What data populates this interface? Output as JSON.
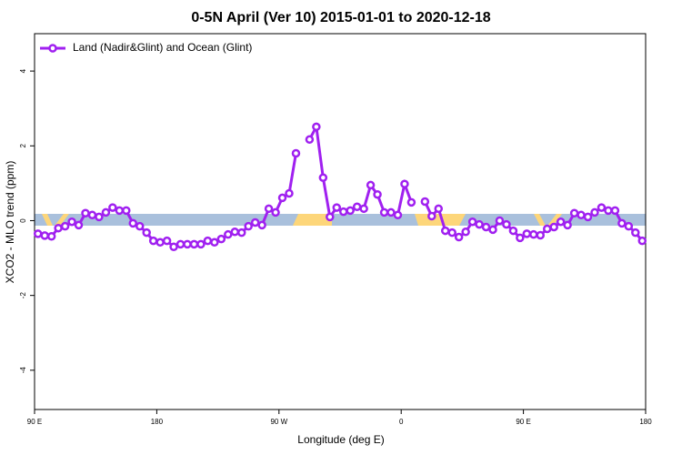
{
  "chart_data": {
    "type": "line",
    "title": "0-5N April (Ver 10)   2015-01-01 to 2020-12-18",
    "x_label": "Longitude (deg E)",
    "y_label": "XCO2 - MLO trend (ppm)",
    "legend": "top-left",
    "x": [
      92.5,
      97.5,
      102.5,
      107.5,
      112.5,
      117.5,
      122.5,
      127.5,
      132.5,
      137.5,
      142.5,
      147.5,
      152.5,
      157.5,
      162.5,
      167.5,
      172.5,
      177.5,
      182.5,
      187.5,
      192.5,
      197.5,
      202.5,
      207.5,
      212.5,
      217.5,
      222.5,
      227.5,
      232.5,
      237.5,
      242.5,
      247.5,
      252.5,
      257.5,
      262.5,
      267.5,
      272.5,
      277.5,
      282.5,
      287.5,
      292.5,
      297.5,
      302.5,
      307.5,
      312.5,
      317.5,
      322.5,
      327.5,
      332.5,
      337.5,
      342.5,
      347.5,
      352.5,
      357.5,
      362.5,
      367.5,
      372.5,
      377.5,
      382.5,
      387.5,
      392.5,
      397.5,
      402.5,
      407.5,
      412.5,
      417.5,
      422.5,
      427.5,
      432.5,
      437.5,
      442.5,
      447.5,
      452.5,
      457.5,
      462.5,
      467.5,
      472.5,
      477.5,
      482.5,
      487.5,
      492.5,
      497.5,
      502.5,
      507.5,
      512.5,
      517.5,
      522.5,
      527.5,
      532.5,
      537.5
    ],
    "series": [
      {
        "name": "Land (Nadir&Glint) and Ocean (Glint)",
        "color": "#a020f0",
        "values": [
          -0.35,
          -0.4,
          -0.42,
          -0.2,
          -0.15,
          -0.03,
          -0.12,
          0.2,
          0.15,
          0.1,
          0.22,
          0.35,
          0.27,
          0.27,
          -0.07,
          -0.15,
          -0.32,
          -0.54,
          -0.58,
          -0.54,
          -0.7,
          -0.63,
          -0.63,
          -0.63,
          -0.63,
          -0.54,
          -0.58,
          -0.49,
          -0.37,
          -0.3,
          -0.32,
          -0.15,
          -0.05,
          -0.12,
          0.32,
          0.22,
          0.61,
          0.73,
          1.8,
          null,
          2.17,
          2.51,
          1.15,
          0.1,
          0.35,
          0.24,
          0.27,
          0.37,
          0.32,
          0.95,
          0.7,
          0.22,
          0.22,
          0.15,
          0.98,
          0.49,
          null,
          0.51,
          0.12,
          0.32,
          -0.27,
          -0.32,
          -0.44,
          -0.3,
          -0.03,
          -0.1,
          -0.17,
          -0.24,
          0,
          -0.1,
          -0.27,
          -0.46,
          -0.35,
          -0.37,
          -0.39,
          -0.22,
          -0.17,
          -0.03,
          -0.12,
          0.2,
          0.15,
          0.1,
          0.22,
          0.35,
          0.27,
          0.27,
          -0.07,
          -0.15,
          -0.32,
          -0.54
        ]
      }
    ],
    "xlim": [
      90,
      540
    ],
    "xticks": [
      {
        "value": 90,
        "label": "90 E"
      },
      {
        "value": 180,
        "label": "180"
      },
      {
        "value": 270,
        "label": "90 W"
      },
      {
        "value": 360,
        "label": "0"
      },
      {
        "value": 450,
        "label": "90 E"
      },
      {
        "value": 540,
        "label": "180"
      }
    ],
    "ylim": [
      -5.05,
      5
    ],
    "yticks": [
      -4,
      -2,
      0,
      2,
      4
    ]
  }
}
